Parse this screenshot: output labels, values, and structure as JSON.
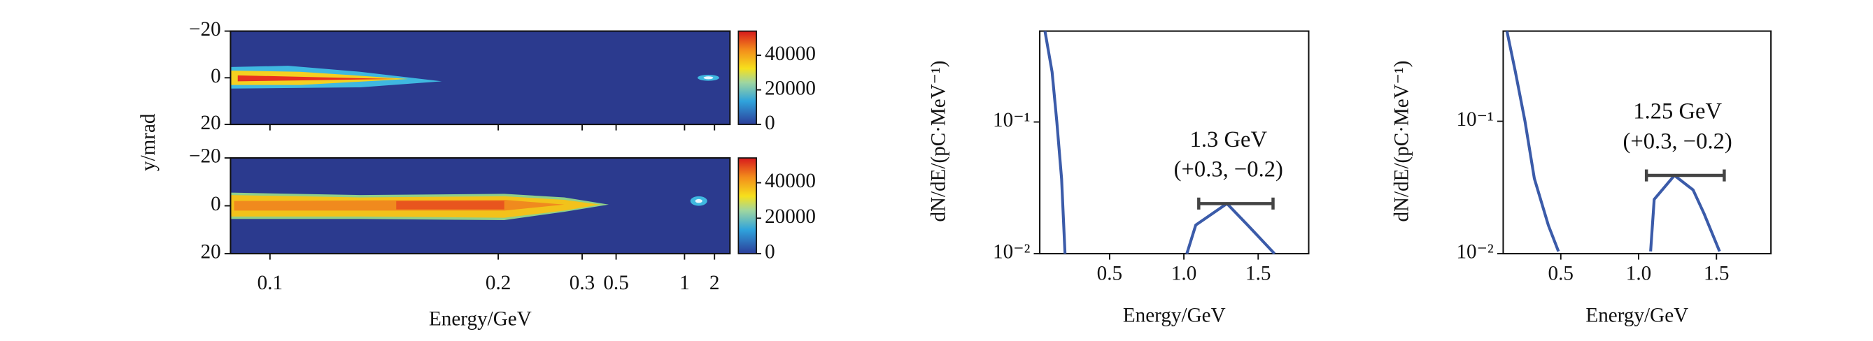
{
  "chart_data": [
    {
      "type": "heatmap",
      "xlabel": "Energy/GeV",
      "ylabel": "y/mrad",
      "xticks": [
        0.1,
        0.2,
        0.3,
        0.5,
        1,
        2
      ],
      "ylim": [
        -20,
        20
      ],
      "yticks": [
        {
          "value": -20,
          "label": "−20"
        },
        0,
        20
      ],
      "clim": [
        0,
        54000
      ],
      "cticks": [
        0,
        20000,
        40000
      ]
    },
    {
      "type": "line",
      "xlabel": "Energy/GeV",
      "ylabel": "dN/dE/(pC·MeV⁻¹)",
      "log_y": true,
      "xlim": [
        0.03,
        1.84
      ],
      "xticks": [
        0.5,
        {
          "value": 1,
          "label": "1.0"
        },
        1.5
      ],
      "ylim": [
        0.01,
        0.49
      ],
      "yticks": [
        {
          "value": 0.01,
          "label": "10⁻²"
        },
        {
          "value": 0.1,
          "label": "10⁻¹"
        }
      ],
      "series": [
        {
          "color": "#3b5ba9",
          "x": [
            0.065,
            0.113,
            0.145,
            0.177,
            0.2
          ],
          "y": [
            0.49,
            0.24,
            0.1,
            0.037,
            0.01
          ]
        },
        {
          "color": "#3b5ba9",
          "x": [
            1.02,
            1.08,
            1.29,
            1.44,
            1.61
          ],
          "y": [
            0.01,
            0.0165,
            0.024,
            0.016,
            0.01
          ]
        }
      ],
      "errorbar": {
        "x": 1.3,
        "y": 0.024,
        "xerr": [
          0.2,
          0.3
        ]
      },
      "annotation": [
        "1.3 GeV",
        "(+0.3, −0.2)"
      ]
    },
    {
      "type": "line",
      "xlabel": "Energy/GeV",
      "ylabel": "dN/dE/(pC·MeV⁻¹)",
      "log_y": true,
      "xlim": [
        0.13,
        1.85
      ],
      "xticks": [
        0.5,
        {
          "value": 1,
          "label": "1.0"
        },
        1.5
      ],
      "ylim": [
        0.01,
        0.48
      ],
      "yticks": [
        {
          "value": 0.01,
          "label": "10⁻²"
        },
        {
          "value": 0.1,
          "label": "10⁻¹"
        }
      ],
      "series": [
        {
          "color": "#3b5ba9",
          "x": [
            0.154,
            0.208,
            0.27,
            0.33,
            0.42,
            0.485
          ],
          "y": [
            0.48,
            0.237,
            0.1,
            0.037,
            0.0164,
            0.0104
          ]
        },
        {
          "color": "#3b5ba9",
          "x": [
            1.077,
            1.1,
            1.23,
            1.35,
            1.42,
            1.52
          ],
          "y": [
            0.0104,
            0.0257,
            0.039,
            0.0303,
            0.0201,
            0.0104
          ]
        }
      ],
      "errorbar": {
        "x": 1.25,
        "y": 0.039,
        "xerr": [
          0.2,
          0.3
        ]
      },
      "annotation": [
        "1.25 GeV",
        "(+0.3, −0.2)"
      ]
    }
  ]
}
